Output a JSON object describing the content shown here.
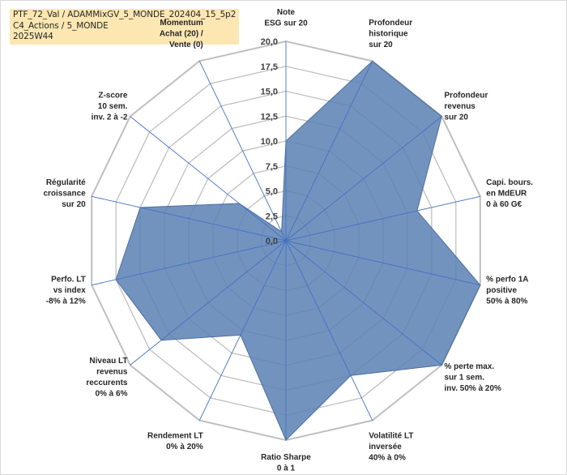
{
  "title": {
    "lines": [
      "PTF_72_Val / ADAMMixGV_5_MONDE_202404_15_5p2",
      "C4_Actions / 5_MONDE",
      "2025W44"
    ]
  },
  "chart_data": {
    "type": "radar",
    "title": "PTF_72_Val / ADAMMixGV_5_MONDE_202404_15_5p2",
    "range": [
      0,
      20
    ],
    "tick_step": 2.5,
    "tick_labels": [
      "0,0",
      "2,5",
      "5,0",
      "7,5",
      "10,0",
      "12,5",
      "15,0",
      "17,5",
      "20,0"
    ],
    "gridlines": true,
    "categories": [
      {
        "lines": [
          "Note",
          "ESG sur 20"
        ],
        "color": "#262626"
      },
      {
        "lines": [
          "Profondeur",
          "historique",
          "sur 20"
        ],
        "color": "#262626"
      },
      {
        "lines": [
          "Profondeur",
          "revenus",
          "sur 20"
        ],
        "color": "#262626"
      },
      {
        "lines": [
          "Capi. bours.",
          "en MdEUR",
          "0 à 60 G€"
        ],
        "color": "#262626"
      },
      {
        "lines": [
          "% perfo 1A",
          "positive",
          "50% à 80%"
        ],
        "color": "#262626"
      },
      {
        "lines": [
          "% perte max.",
          "sur 1 sem.",
          "inv. 50% à 20%"
        ],
        "color": "#262626"
      },
      {
        "lines": [
          "Volatilité LT",
          "inversée",
          "40% à 0%"
        ],
        "color": "#262626"
      },
      {
        "lines": [
          "Ratio Sharpe",
          "0 à 1"
        ],
        "color": "#262626"
      },
      {
        "lines": [
          "Rendement LT",
          "0% à 20%"
        ],
        "color": "#262626"
      },
      {
        "lines": [
          "Niveau LT",
          "revenus",
          "reccurents",
          "0% à 6%"
        ],
        "color": "#262626"
      },
      {
        "lines": [
          "Perfo. LT",
          "vs index",
          "-8% à 12%"
        ],
        "color": "#262626"
      },
      {
        "lines": [
          "Régularité",
          "croissance",
          "sur 20"
        ],
        "color": "#262626"
      },
      {
        "lines": [
          "Z-score",
          "10 sem.",
          "inv. 2 à -2"
        ],
        "color": "#262626"
      },
      {
        "lines": [
          "Momentum",
          "Achat (20) /",
          "Vente (0)"
        ],
        "color": "#a08a52"
      }
    ],
    "series": [
      {
        "name": "PTF_72_Val",
        "values": [
          10.0,
          20.0,
          20.0,
          13.5,
          20.0,
          20.0,
          15.0,
          20.0,
          10.5,
          16.0,
          17.5,
          15.0,
          6.0,
          1.0
        ],
        "fill": "#5b80b4",
        "stroke": "#4a6f9f"
      }
    ],
    "colors": {
      "grid": "#bfbfbf",
      "spoke": "#4472c4",
      "outer": "#bfbfbf"
    }
  }
}
